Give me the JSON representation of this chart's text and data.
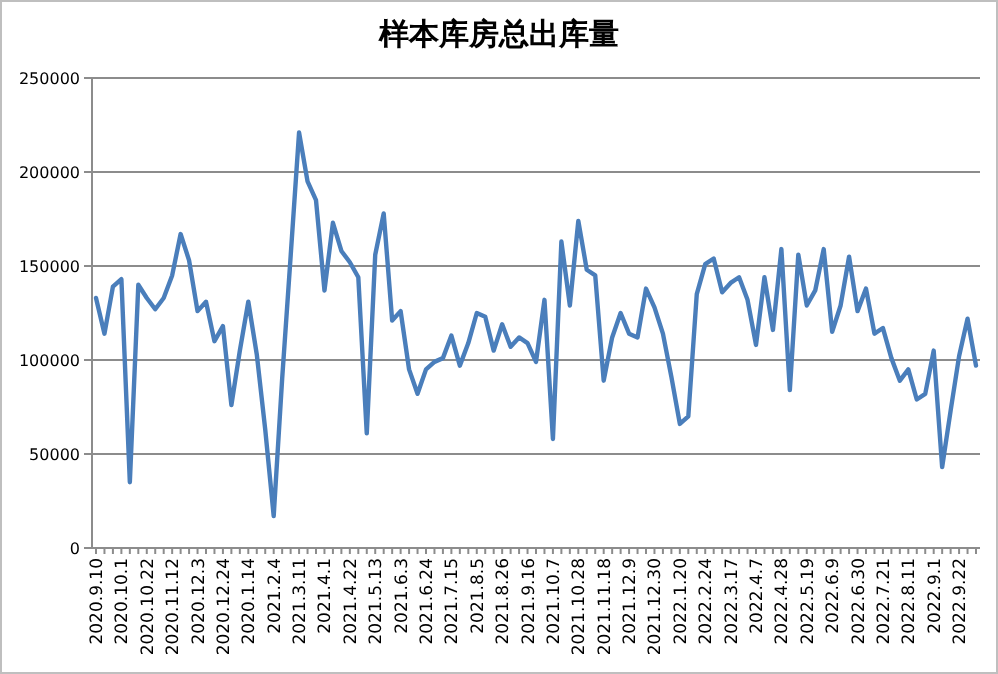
{
  "chart_data": {
    "type": "line",
    "title": "样本库房总出库量",
    "categories": [
      "2020.9.10",
      null,
      null,
      "2020.10.1",
      null,
      null,
      "2020.10.22",
      null,
      null,
      "2020.11.12",
      null,
      null,
      "2020.12.3",
      null,
      null,
      "2020.12.24",
      null,
      null,
      "2020.1.14",
      null,
      null,
      "2021.2.4",
      null,
      null,
      "2021.3.11",
      null,
      null,
      "2021.4.1",
      null,
      null,
      "2021.4.22",
      null,
      null,
      "2021.5.13",
      null,
      null,
      "2021.6.3",
      null,
      null,
      "2021.6.24",
      null,
      null,
      "2021.7.15",
      null,
      null,
      "2021.8.5",
      null,
      null,
      "2021.8.26",
      null,
      null,
      "2021.9.16",
      null,
      null,
      "2021.10.7",
      null,
      null,
      "2021.10.28",
      null,
      null,
      "2021.11.18",
      null,
      null,
      "2021.12.9",
      null,
      null,
      "2021.12.30",
      null,
      null,
      "2022.1.20",
      null,
      null,
      "2022.2.24",
      null,
      null,
      "2022.3.17",
      null,
      null,
      "2022.4.7",
      null,
      null,
      "2022.4.28",
      null,
      null,
      "2022.5.19",
      null,
      null,
      "2022.6.9",
      null,
      null,
      "2022.6.30",
      null,
      null,
      "2022.7.21",
      null,
      null,
      "2022.8.11",
      null,
      null,
      "2022.9.1",
      null,
      null,
      "2022.9.22",
      null,
      null
    ],
    "series": [
      {
        "color": "#4a7ebb",
        "values": [
          133000,
          114000,
          139000,
          143000,
          35000,
          140000,
          133000,
          127000,
          133000,
          145000,
          167000,
          153000,
          126000,
          131000,
          110000,
          118000,
          76000,
          105000,
          131000,
          103000,
          63000,
          17000,
          90000,
          155000,
          221000,
          195000,
          185000,
          137000,
          173000,
          158000,
          152000,
          144000,
          61000,
          156000,
          178000,
          121000,
          126000,
          95000,
          82000,
          95000,
          99000,
          101000,
          113000,
          97000,
          109000,
          125000,
          123000,
          105000,
          119000,
          107000,
          112000,
          109000,
          99000,
          132000,
          58000,
          163000,
          129000,
          174000,
          148000,
          145000,
          89000,
          112000,
          125000,
          114000,
          112000,
          138000,
          128000,
          114000,
          91000,
          66000,
          70000,
          135000,
          151000,
          154000,
          136000,
          141000,
          144000,
          132000,
          108000,
          144000,
          116000,
          159000,
          84000,
          156000,
          129000,
          137000,
          159000,
          115000,
          129000,
          155000,
          126000,
          138000,
          114000,
          117000,
          101000,
          89000,
          95000,
          79000,
          82000,
          105000,
          43000,
          73000,
          102000,
          122000,
          97000
        ]
      }
    ],
    "ylim": [
      0,
      250000
    ],
    "yticks": [
      0,
      50000,
      100000,
      150000,
      200000,
      250000
    ],
    "grid": "y",
    "marker": "none",
    "line_style": "solid"
  }
}
